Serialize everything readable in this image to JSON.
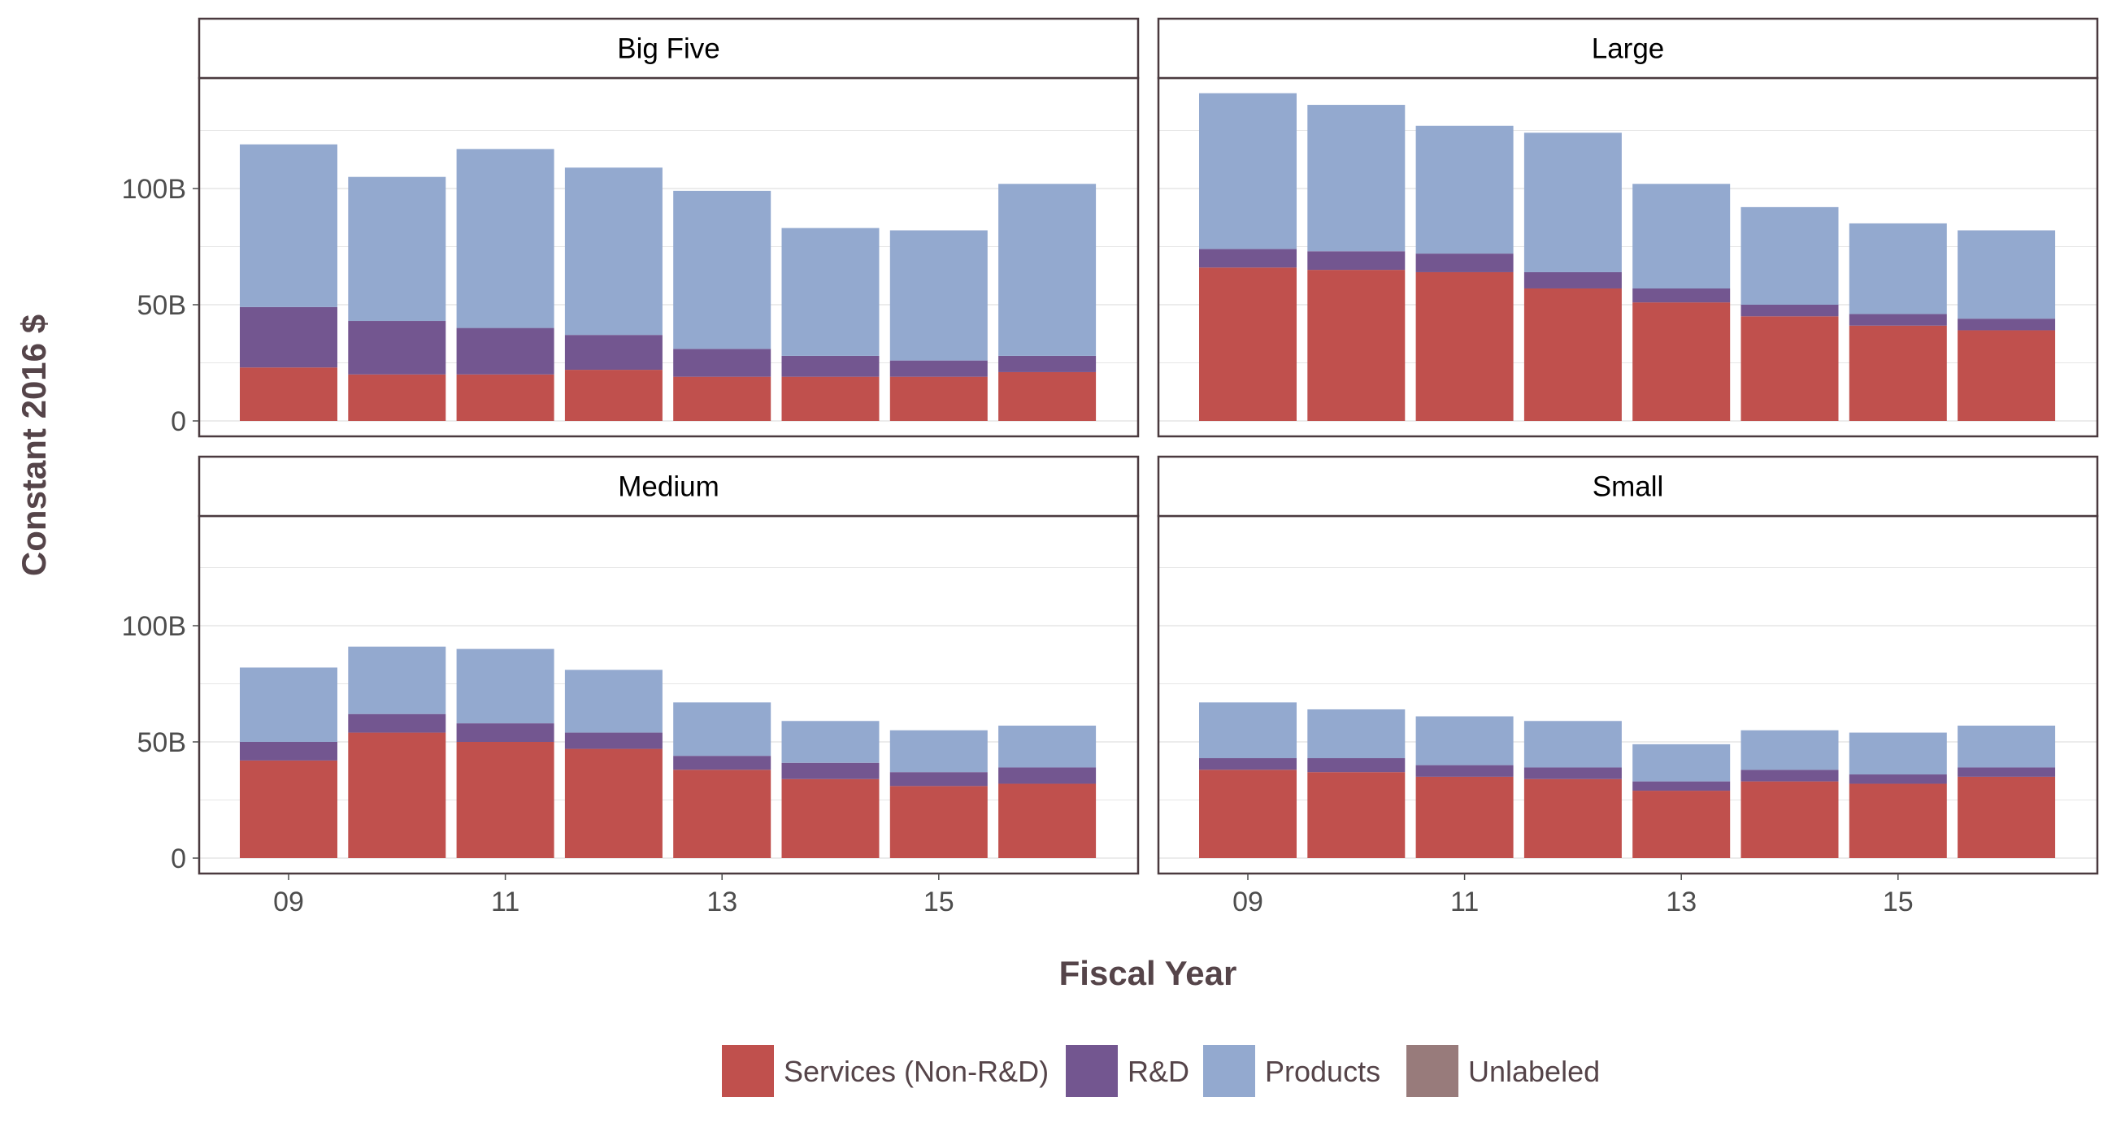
{
  "chart_data": {
    "type": "bar",
    "stacked": true,
    "facets": [
      "Big Five",
      "Large",
      "Medium",
      "Small"
    ],
    "x": [
      2009,
      2010,
      2011,
      2012,
      2013,
      2014,
      2015,
      2016
    ],
    "x_tick_labels": [
      "09",
      "11",
      "13",
      "15"
    ],
    "x_tick_values": [
      2009,
      2011,
      2013,
      2015
    ],
    "xlabel": "Fiscal Year",
    "ylabel": "Constant 2016 $",
    "y_tick_labels": [
      "0",
      "50B",
      "100B"
    ],
    "y_tick_values": [
      0,
      50,
      100
    ],
    "ylim": [
      0,
      147
    ],
    "y_unit": "billions",
    "legend_position": "bottom",
    "grid": true,
    "colors": {
      "Services (Non-R&D)": "#c0504d",
      "R&D": "#735690",
      "Products": "#93a9cf",
      "Unlabeled": "#987b7b"
    },
    "series_order": [
      "Services (Non-R&D)",
      "R&D",
      "Products",
      "Unlabeled"
    ],
    "data": {
      "Big Five": {
        "Services (Non-R&D)": [
          23,
          20,
          20,
          22,
          19,
          19,
          19,
          21
        ],
        "R&D": [
          26,
          23,
          20,
          15,
          12,
          9,
          7,
          7
        ],
        "Products": [
          70,
          62,
          77,
          72,
          68,
          55,
          56,
          74
        ],
        "Unlabeled": [
          0,
          0,
          0,
          0,
          0,
          0,
          0,
          0
        ]
      },
      "Large": {
        "Services (Non-R&D)": [
          66,
          65,
          64,
          57,
          51,
          45,
          41,
          39
        ],
        "R&D": [
          8,
          8,
          8,
          7,
          6,
          5,
          5,
          5
        ],
        "Products": [
          67,
          63,
          55,
          60,
          45,
          42,
          39,
          38
        ],
        "Unlabeled": [
          0,
          0,
          0,
          0,
          0,
          0,
          0,
          0
        ]
      },
      "Medium": {
        "Services (Non-R&D)": [
          42,
          54,
          50,
          47,
          38,
          34,
          31,
          32
        ],
        "R&D": [
          8,
          8,
          8,
          7,
          6,
          7,
          6,
          7
        ],
        "Products": [
          32,
          29,
          32,
          27,
          23,
          18,
          18,
          18
        ],
        "Unlabeled": [
          0,
          0,
          0,
          0,
          0,
          0,
          0,
          0
        ]
      },
      "Small": {
        "Services (Non-R&D)": [
          38,
          37,
          35,
          34,
          29,
          33,
          32,
          35
        ],
        "R&D": [
          5,
          6,
          5,
          5,
          4,
          5,
          4,
          4
        ],
        "Products": [
          24,
          21,
          21,
          20,
          16,
          17,
          18,
          18
        ],
        "Unlabeled": [
          0,
          0,
          0,
          0,
          0,
          0,
          0,
          0
        ]
      }
    }
  }
}
